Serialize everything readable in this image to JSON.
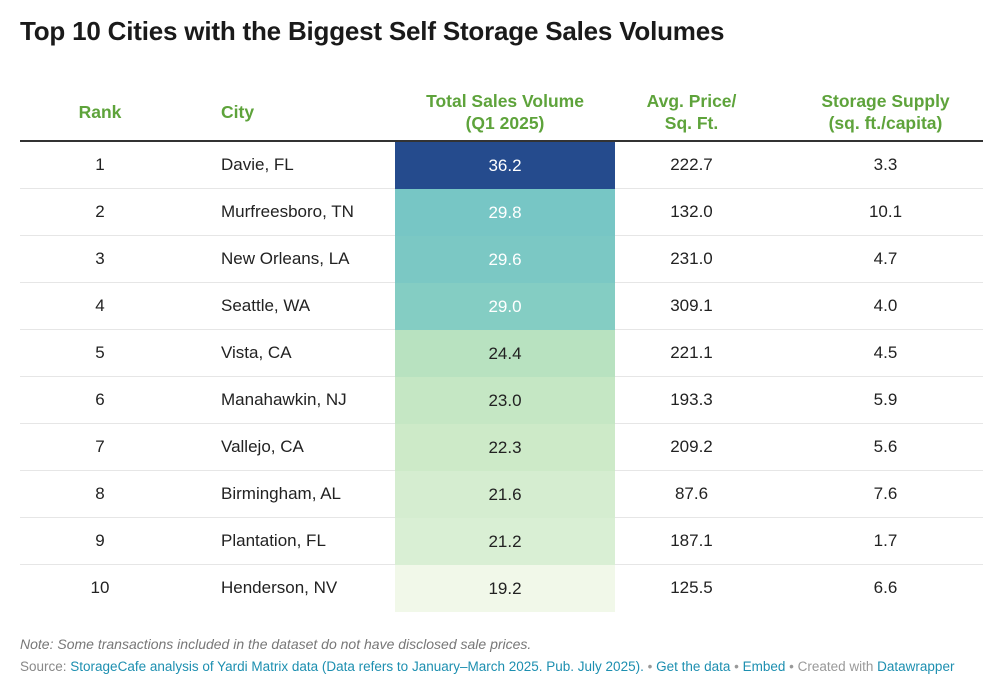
{
  "title": "Top 10 Cities with the Biggest Self Storage Sales Volumes",
  "headers": {
    "rank": "Rank",
    "city": "City",
    "volume_line1": "Total Sales Volume",
    "volume_line2": "(Q1 2025)",
    "price_line1": "Avg. Price/",
    "price_line2": "Sq. Ft.",
    "supply_line1": "Storage Supply",
    "supply_line2": "(sq. ft./capita)"
  },
  "colors": {
    "header_text": "#5ea33b",
    "heat_scale": [
      "#f1f8e9",
      "#c9e9c5",
      "#a9dcbc",
      "#7fcbc4",
      "#3a9fcc",
      "#254b8d"
    ]
  },
  "chart_data": {
    "type": "table",
    "columns": [
      "Rank",
      "City",
      "Total Sales Volume (Q1 2025)",
      "Avg. Price/ Sq. Ft.",
      "Storage Supply (sq. ft./capita)"
    ],
    "rows": [
      {
        "rank": "1",
        "city": "Davie, FL",
        "volume": "36.2",
        "price": "222.7",
        "supply": "3.3"
      },
      {
        "rank": "2",
        "city": "Murfreesboro, TN",
        "volume": "29.8",
        "price": "132.0",
        "supply": "10.1"
      },
      {
        "rank": "3",
        "city": "New Orleans, LA",
        "volume": "29.6",
        "price": "231.0",
        "supply": "4.7"
      },
      {
        "rank": "4",
        "city": "Seattle, WA",
        "volume": "29.0",
        "price": "309.1",
        "supply": "4.0"
      },
      {
        "rank": "5",
        "city": "Vista, CA",
        "volume": "24.4",
        "price": "221.1",
        "supply": "4.5"
      },
      {
        "rank": "6",
        "city": "Manahawkin, NJ",
        "volume": "23.0",
        "price": "193.3",
        "supply": "5.9"
      },
      {
        "rank": "7",
        "city": "Vallejo, CA",
        "volume": "22.3",
        "price": "209.2",
        "supply": "5.6"
      },
      {
        "rank": "8",
        "city": "Birmingham, AL",
        "volume": "21.6",
        "price": "87.6",
        "supply": "7.6"
      },
      {
        "rank": "9",
        "city": "Plantation, FL",
        "volume": "21.2",
        "price": "187.1",
        "supply": "1.7"
      },
      {
        "rank": "10",
        "city": "Henderson, NV",
        "volume": "19.2",
        "price": "125.5",
        "supply": "6.6"
      }
    ]
  },
  "note": "Note: Some transactions included in the dataset do not have disclosed sale prices.",
  "source": {
    "prefix": "Source: ",
    "link_text": "StorageCafe analysis of Yardi Matrix data (Data refers to January–March 2025. Pub. July 2025).",
    "sep1": " • ",
    "get_data": "Get the data",
    "sep2": " • ",
    "embed": "Embed",
    "sep3": " • Created with ",
    "datawrapper": "Datawrapper"
  }
}
